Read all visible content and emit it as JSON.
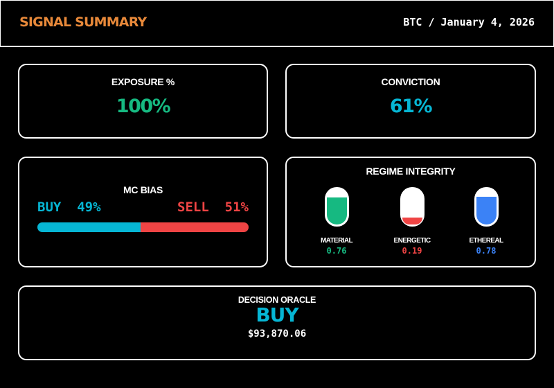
{
  "header": {
    "title": "SIGNAL SUMMARY",
    "meta": "BTC / January 4, 2026"
  },
  "exposure": {
    "label": "EXPOSURE %",
    "value": "100%"
  },
  "conviction": {
    "label": "CONVICTION",
    "value": "61%"
  },
  "mc_bias": {
    "label": "MC BIAS",
    "buy_label": "BUY  49%",
    "sell_label": "SELL  51%",
    "buy_pct": 49,
    "sell_pct": 51
  },
  "regime": {
    "label": "REGIME INTEGRITY",
    "items": [
      {
        "name": "MATERIAL",
        "value": "0.76",
        "fill": 0.76,
        "color": "#16B981"
      },
      {
        "name": "ENERGETIC",
        "value": "0.19",
        "fill": 0.19,
        "color": "#EF4444"
      },
      {
        "name": "ETHEREAL",
        "value": "0.78",
        "fill": 0.78,
        "color": "#3B82F6"
      }
    ]
  },
  "oracle": {
    "label": "DECISION ORACLE",
    "signal": "BUY",
    "price": "$93,870.06"
  },
  "colors": {
    "brand_orange": "#E8893A",
    "green": "#16B981",
    "cyan": "#06B6D4",
    "red": "#EF4444",
    "blue": "#3B82F6"
  }
}
